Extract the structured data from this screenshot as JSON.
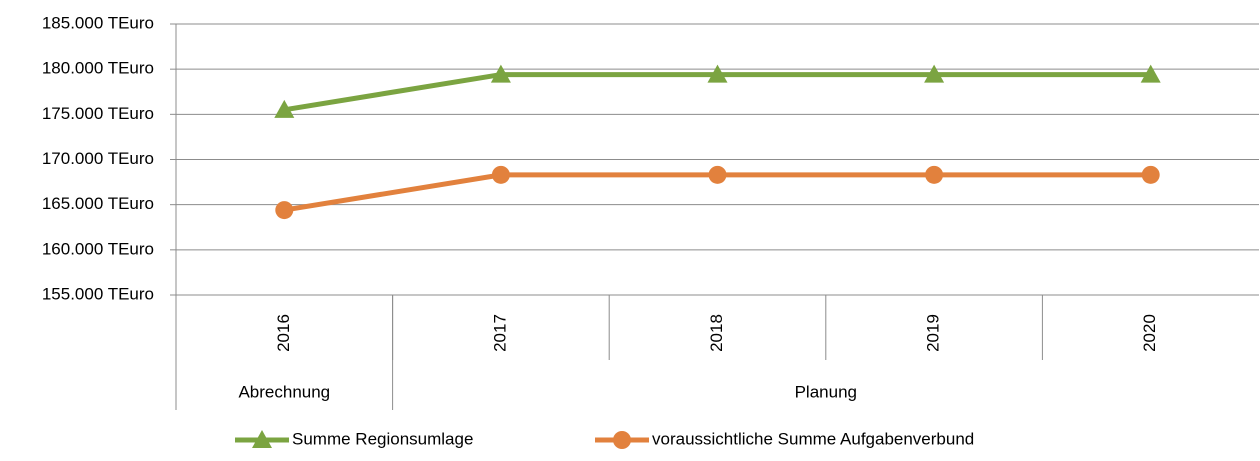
{
  "chart_data": {
    "type": "line",
    "categories": [
      "2016",
      "2017",
      "2018",
      "2019",
      "2020"
    ],
    "groups": [
      {
        "label": "Abrechnung",
        "span": 1
      },
      {
        "label": "Planung",
        "span": 4
      }
    ],
    "series": [
      {
        "name": "Summe Regionsumlage",
        "color": "#7ba441",
        "marker": "triangle",
        "values": [
          175500,
          179400,
          179400,
          179400,
          179400
        ]
      },
      {
        "name": "voraussichtliche Summe Aufgabenverbund",
        "color": "#e2813d",
        "marker": "circle",
        "values": [
          164400,
          168300,
          168300,
          168300,
          168300
        ]
      }
    ],
    "ylim": [
      155000,
      185000
    ],
    "yticks": [
      {
        "value": 155000,
        "label": "155.000 TEuro"
      },
      {
        "value": 160000,
        "label": "160.000 TEuro"
      },
      {
        "value": 165000,
        "label": "165.000 TEuro"
      },
      {
        "value": 170000,
        "label": "170.000 TEuro"
      },
      {
        "value": 175000,
        "label": "175.000 TEuro"
      },
      {
        "value": 180000,
        "label": "180.000 TEuro"
      },
      {
        "value": 185000,
        "label": "185.000 TEuro"
      }
    ],
    "grid": true,
    "legend": "bottom"
  }
}
